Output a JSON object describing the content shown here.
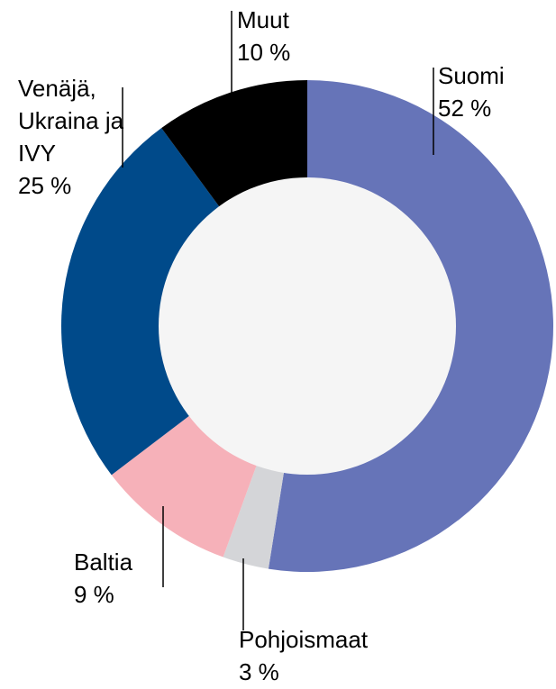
{
  "chart_data": {
    "type": "donut",
    "categories": [
      "Suomi",
      "Pohjoismaat",
      "Baltia",
      "Venäjä, Ukraina ja IVY",
      "Muut"
    ],
    "values": [
      52,
      3,
      9,
      25,
      10
    ],
    "value_labels": [
      "52 %",
      "3 %",
      "9 %",
      "25 %",
      "10 %"
    ],
    "colors": [
      "#6674b8",
      "#d4d5d8",
      "#f6b1b9",
      "#004a8a",
      "#000000"
    ]
  }
}
